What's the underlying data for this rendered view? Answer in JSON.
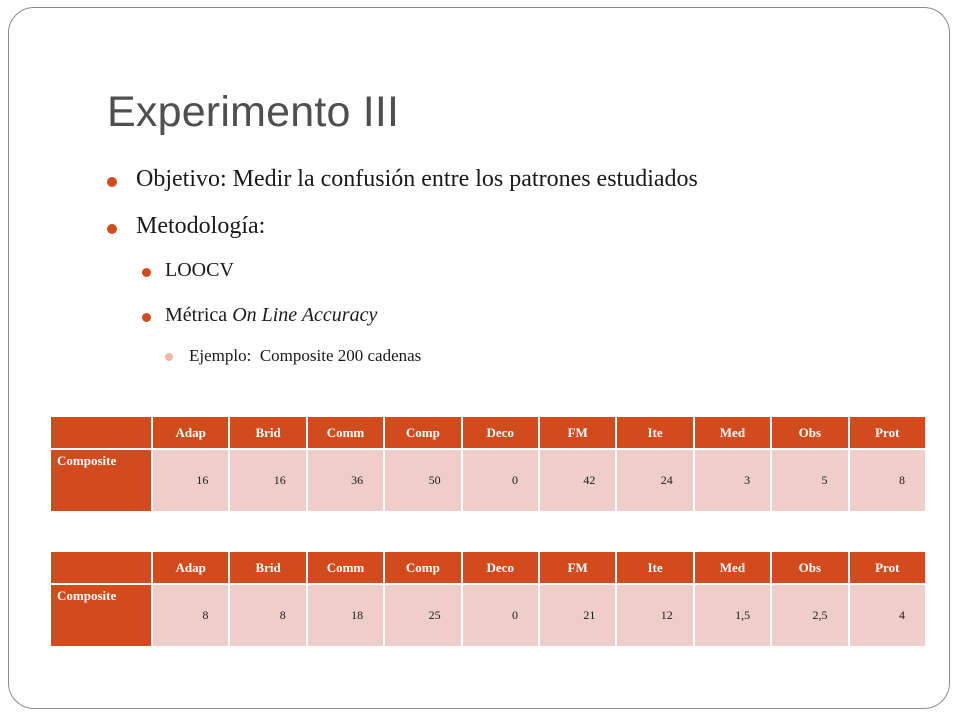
{
  "slide": {
    "title": "Experimento III",
    "bullets": {
      "objective": "Objetivo: Medir la confusión entre los patrones estudiados",
      "methodology": "Metodología:",
      "loocv": "LOOCV",
      "metric_prefix": "Métrica",
      "metric_name": "On Line Accuracy",
      "example": "Ejemplo:  Composite 200 cadenas"
    }
  },
  "tables": [
    {
      "columns": [
        "",
        "Adap",
        "Brid",
        "Comm",
        "Comp",
        "Deco",
        "FM",
        "Ite",
        "Med",
        "Obs",
        "Prot"
      ],
      "row_label": "Composite",
      "values": [
        "16",
        "16",
        "36",
        "50",
        "0",
        "42",
        "24",
        "3",
        "5",
        "8"
      ]
    },
    {
      "columns": [
        "",
        "Adap",
        "Brid",
        "Comm",
        "Comp",
        "Deco",
        "FM",
        "Ite",
        "Med",
        "Obs",
        "Prot"
      ],
      "row_label": "Composite",
      "values": [
        "8",
        "8",
        "18",
        "25",
        "0",
        "21",
        "12",
        "1,5",
        "2,5",
        "4"
      ]
    }
  ],
  "colors": {
    "accent": "#d24b1c",
    "cell_fill": "#efcdcb",
    "title_text": "#4f4f4f",
    "sub_bullet": "#f0b7a7"
  }
}
